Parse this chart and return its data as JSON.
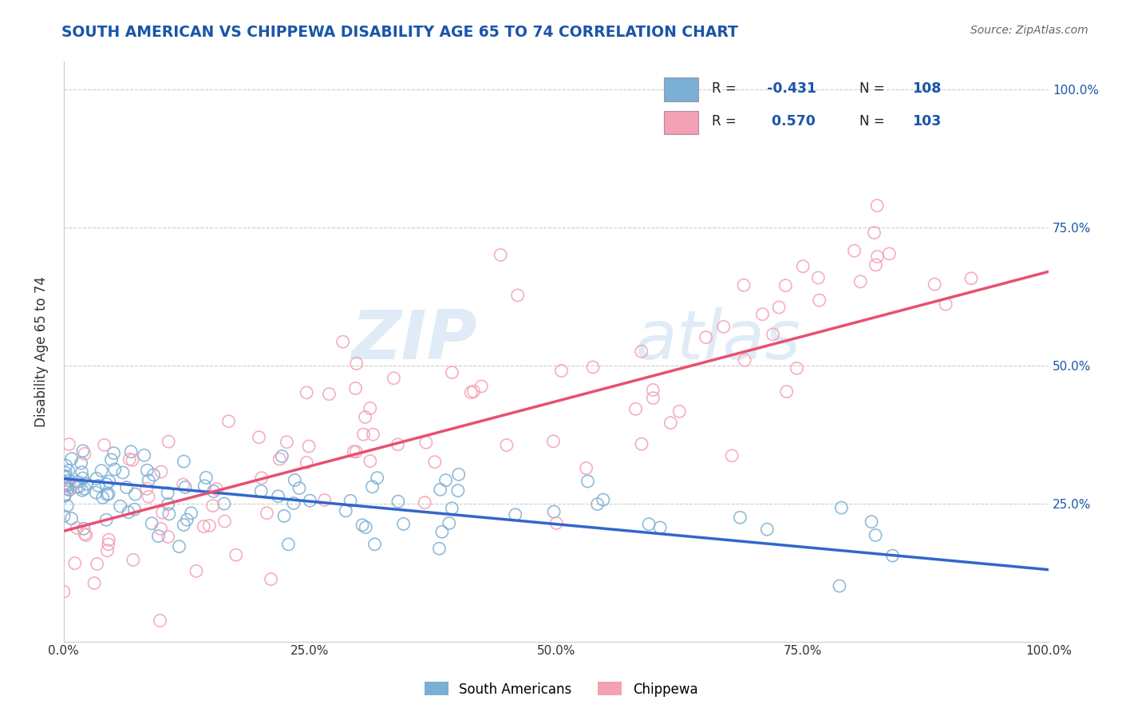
{
  "title": "SOUTH AMERICAN VS CHIPPEWA DISABILITY AGE 65 TO 74 CORRELATION CHART",
  "source": "Source: ZipAtlas.com",
  "ylabel": "Disability Age 65 to 74",
  "xlabel_ticks": [
    "0.0%",
    "25.0%",
    "50.0%",
    "75.0%",
    "100.0%"
  ],
  "ylabel_ticks_right": [
    "100.0%",
    "75.0%",
    "50.0%",
    "25.0%"
  ],
  "bottom_legend": [
    "South Americans",
    "Chippewa"
  ],
  "blue_color": "#7bafd4",
  "pink_color": "#f4a0b5",
  "blue_line_color": "#3366cc",
  "pink_line_color": "#e85070",
  "watermark_zip": "ZIP",
  "watermark_atlas": "atlas",
  "xmin": 0.0,
  "xmax": 1.0,
  "ymin": 0.0,
  "ymax": 1.05,
  "title_color": "#1a55aa",
  "source_color": "#666666",
  "R_blue": -0.431,
  "N_blue": 108,
  "R_pink": 0.57,
  "N_pink": 103,
  "legend_R_color": "#1a55aa",
  "legend_N_color": "#1a55aa"
}
